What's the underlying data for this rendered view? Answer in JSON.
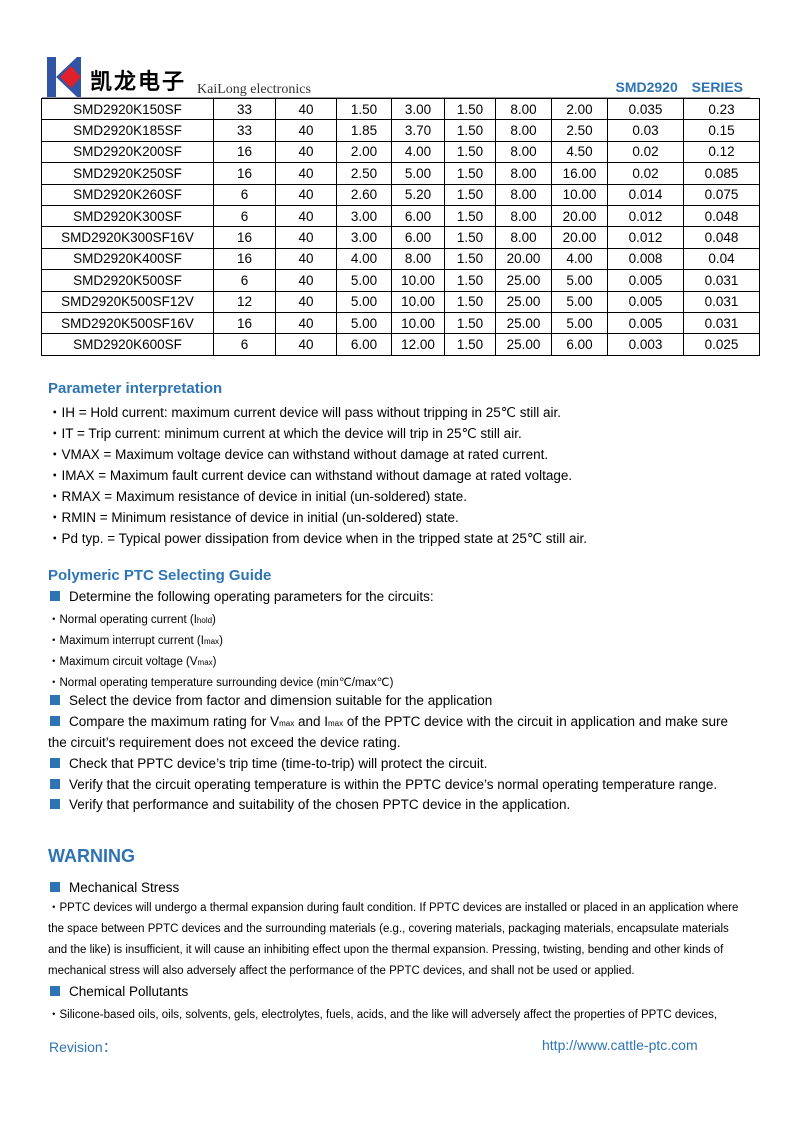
{
  "header": {
    "logo_cn": "凯龙电子",
    "logo_en": "KaiLong electronics",
    "series": "SMD2920 SERIES",
    "logo_colors": {
      "k": "#2f55a4",
      "diamond": "#e0202a"
    }
  },
  "table": {
    "rows": [
      [
        "SMD2920K150SF",
        "33",
        "40",
        "1.50",
        "3.00",
        "1.50",
        "8.00",
        "2.00",
        "0.035",
        "0.23"
      ],
      [
        "SMD2920K185SF",
        "33",
        "40",
        "1.85",
        "3.70",
        "1.50",
        "8.00",
        "2.50",
        "0.03",
        "0.15"
      ],
      [
        "SMD2920K200SF",
        "16",
        "40",
        "2.00",
        "4.00",
        "1.50",
        "8.00",
        "4.50",
        "0.02",
        "0.12"
      ],
      [
        "SMD2920K250SF",
        "16",
        "40",
        "2.50",
        "5.00",
        "1.50",
        "8.00",
        "16.00",
        "0.02",
        "0.085"
      ],
      [
        "SMD2920K260SF",
        "6",
        "40",
        "2.60",
        "5.20",
        "1.50",
        "8.00",
        "10.00",
        "0.014",
        "0.075"
      ],
      [
        "SMD2920K300SF",
        "6",
        "40",
        "3.00",
        "6.00",
        "1.50",
        "8.00",
        "20.00",
        "0.012",
        "0.048"
      ],
      [
        "SMD2920K300SF16V",
        "16",
        "40",
        "3.00",
        "6.00",
        "1.50",
        "8.00",
        "20.00",
        "0.012",
        "0.048"
      ],
      [
        "SMD2920K400SF",
        "16",
        "40",
        "4.00",
        "8.00",
        "1.50",
        "20.00",
        "4.00",
        "0.008",
        "0.04"
      ],
      [
        "SMD2920K500SF",
        "6",
        "40",
        "5.00",
        "10.00",
        "1.50",
        "25.00",
        "5.00",
        "0.005",
        "0.031"
      ],
      [
        "SMD2920K500SF12V",
        "12",
        "40",
        "5.00",
        "10.00",
        "1.50",
        "25.00",
        "5.00",
        "0.005",
        "0.031"
      ],
      [
        "SMD2920K500SF16V",
        "16",
        "40",
        "5.00",
        "10.00",
        "1.50",
        "25.00",
        "5.00",
        "0.005",
        "0.031"
      ],
      [
        "SMD2920K600SF",
        "6",
        "40",
        "6.00",
        "12.00",
        "1.50",
        "25.00",
        "6.00",
        "0.003",
        "0.025"
      ]
    ]
  },
  "params": {
    "title": "Parameter interpretation",
    "items": [
      "・IH = Hold current: maximum current device will pass without tripping in 25℃  still air.",
      "・IT = Trip current: minimum current at which the device will trip in 25℃  still air.",
      "・VMAX = Maximum voltage device can withstand without damage at rated current.",
      "・IMAX = Maximum fault current device can withstand without damage at rated voltage.",
      "・RMAX = Maximum resistance of device in initial (un-soldered) state.",
      "・RMIN = Minimum resistance of device in initial (un-soldered) state.",
      "・Pd typ. = Typical power dissipation from device when in the tripped state at 25℃  still air."
    ]
  },
  "guide": {
    "title": "Polymeric PTC Selecting Guide",
    "step1": "Determine the following operating parameters for the circuits:",
    "sub": [
      {
        "pre": "・Normal operating current (I",
        "sub": "hold",
        "post": ")"
      },
      {
        "pre": "・Maximum interrupt current (I",
        "sub": "max",
        "post": ")"
      },
      {
        "pre": "・Maximum circuit voltage (V",
        "sub": "max",
        "post": ")"
      },
      {
        "pre": "・Normal operating temperature surrounding device (min℃/max℃)",
        "sub": "",
        "post": ""
      }
    ],
    "step2": "Select the device from factor and dimension suitable for the application",
    "step3a": "Compare the maximum rating for V",
    "step3_sub1": "max",
    "step3b": " and I",
    "step3_sub2": "max",
    "step3c": " of the PPTC device with the circuit in application and make sure",
    "step3d": "the circuit’s requirement does not exceed the device rating.",
    "step4": "Check that PPTC device’s trip time (time-to-trip) will protect the circuit.",
    "step5": "Verify that the circuit operating temperature is within the PPTC device’s normal operating temperature range.",
    "step6": "Verify that performance and suitability of the chosen PPTC device in the application."
  },
  "warning": {
    "title": "WARNING",
    "mech_title": "Mechanical Stress",
    "mech_text": "・PPTC devices will undergo a thermal expansion during fault condition. If PPTC devices are installed or placed in an application where the space between PPTC devices and the surrounding materials (e.g., covering materials, packaging materials, encapsulate materials and the like) is insufficient, it will cause an inhibiting effect upon the thermal expansion. Pressing, twisting, bending and other kinds of mechanical stress will also adversely affect the performance of the PPTC devices, and shall not be used or applied.",
    "chem_title": "Chemical Pollutants",
    "chem_text": "・Silicone-based oils, oils, solvents, gels, electrolytes, fuels, acids, and the like will adversely affect the properties of PPTC devices,"
  },
  "footer": {
    "revision": "Revision：",
    "url": "http://www.cattle-ptc.com"
  }
}
